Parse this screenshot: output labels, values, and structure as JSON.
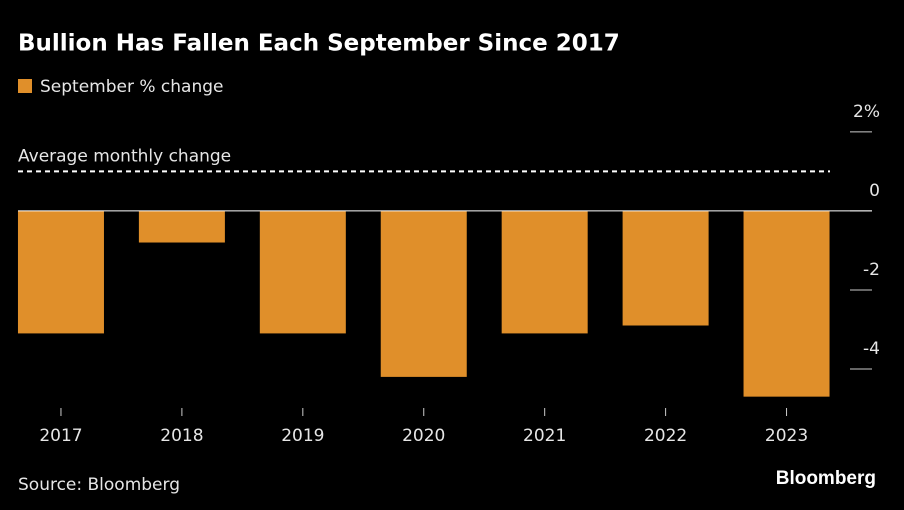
{
  "chart_data": {
    "type": "bar",
    "title": "Bullion Has Fallen Each September Since 2017",
    "series": [
      {
        "name": "September % change",
        "color": "#e08f2a",
        "values": [
          -3.1,
          -0.8,
          -3.1,
          -4.2,
          -3.1,
          -2.9,
          -4.7
        ]
      }
    ],
    "categories": [
      "2017",
      "2018",
      "2019",
      "2020",
      "2021",
      "2022",
      "2023"
    ],
    "reference_line": {
      "label": "Average monthly change",
      "value": 1.0
    },
    "ylim": [
      -4.8,
      2.3
    ],
    "yticks": [
      {
        "value": 2,
        "label": "2%"
      },
      0,
      -2,
      -4
    ],
    "source": "Source: Bloomberg",
    "brand": "Bloomberg"
  }
}
